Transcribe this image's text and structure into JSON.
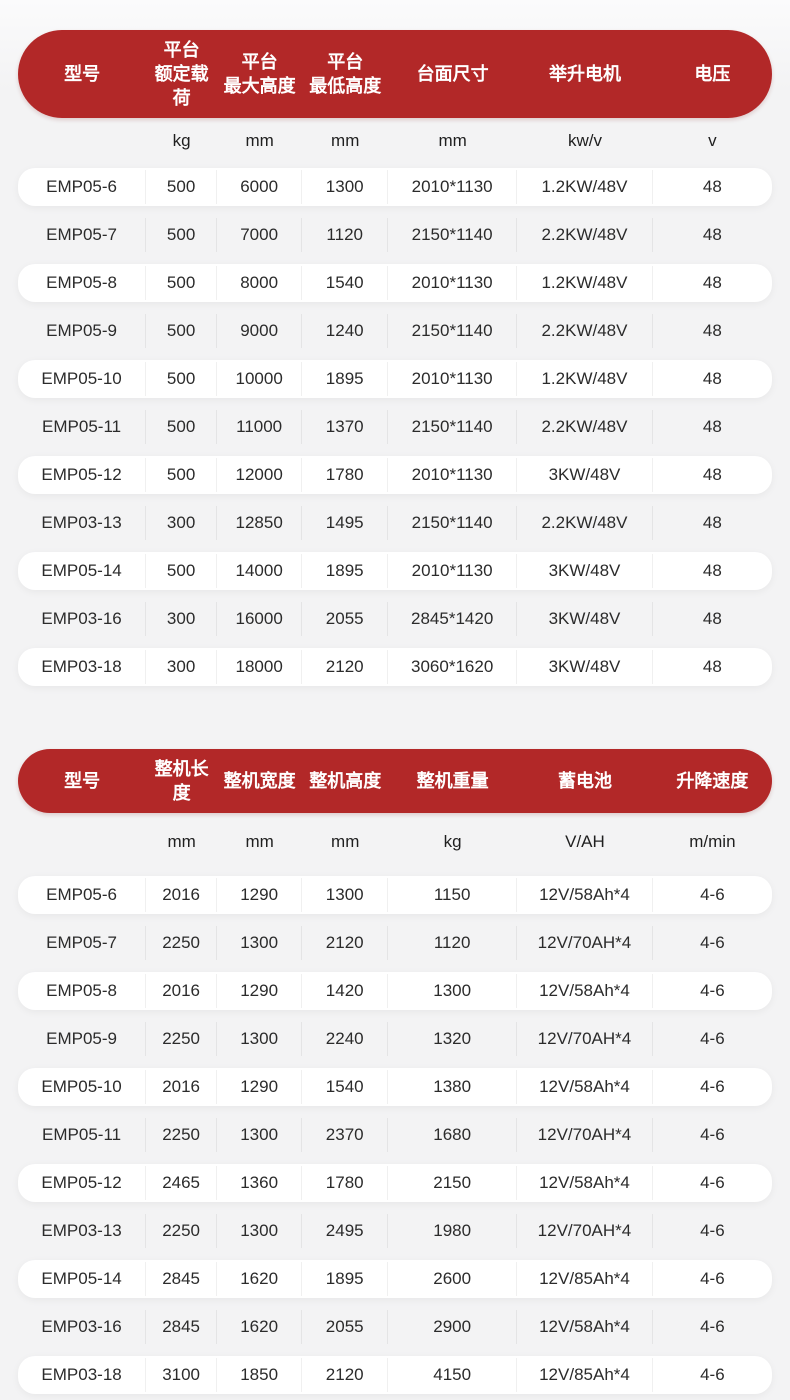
{
  "colors": {
    "header_bg": "#b22828",
    "header_text": "#ffffff",
    "row_highlight": "#ffffff",
    "page_bg": "#f3f3f4",
    "body_text": "#2b2b2b"
  },
  "table1": {
    "headers": [
      [
        "型号"
      ],
      [
        "平台",
        "额定载荷"
      ],
      [
        "平台",
        "最大高度"
      ],
      [
        "平台",
        "最低高度"
      ],
      [
        "台面尺寸"
      ],
      [
        "举升电机"
      ],
      [
        "电压"
      ]
    ],
    "units": [
      "",
      "kg",
      "mm",
      "mm",
      "mm",
      "kw/v",
      "v"
    ],
    "rows": [
      [
        "EMP05-6",
        "500",
        "6000",
        "1300",
        "2010*1130",
        "1.2KW/48V",
        "48"
      ],
      [
        "EMP05-7",
        "500",
        "7000",
        "1120",
        "2150*1140",
        "2.2KW/48V",
        "48"
      ],
      [
        "EMP05-8",
        "500",
        "8000",
        "1540",
        "2010*1130",
        "1.2KW/48V",
        "48"
      ],
      [
        "EMP05-9",
        "500",
        "9000",
        "1240",
        "2150*1140",
        "2.2KW/48V",
        "48"
      ],
      [
        "EMP05-10",
        "500",
        "10000",
        "1895",
        "2010*1130",
        "1.2KW/48V",
        "48"
      ],
      [
        "EMP05-11",
        "500",
        "11000",
        "1370",
        "2150*1140",
        "2.2KW/48V",
        "48"
      ],
      [
        "EMP05-12",
        "500",
        "12000",
        "1780",
        "2010*1130",
        "3KW/48V",
        "48"
      ],
      [
        "EMP03-13",
        "300",
        "12850",
        "1495",
        "2150*1140",
        "2.2KW/48V",
        "48"
      ],
      [
        "EMP05-14",
        "500",
        "14000",
        "1895",
        "2010*1130",
        "3KW/48V",
        "48"
      ],
      [
        "EMP03-16",
        "300",
        "16000",
        "2055",
        "2845*1420",
        "3KW/48V",
        "48"
      ],
      [
        "EMP03-18",
        "300",
        "18000",
        "2120",
        "3060*1620",
        "3KW/48V",
        "48"
      ]
    ]
  },
  "table2": {
    "headers": [
      [
        "型号"
      ],
      [
        "整机长度"
      ],
      [
        "整机宽度"
      ],
      [
        "整机高度"
      ],
      [
        "整机重量"
      ],
      [
        "蓄电池"
      ],
      [
        "升降速度"
      ]
    ],
    "units": [
      "",
      "mm",
      "mm",
      "mm",
      "kg",
      "V/AH",
      "m/min"
    ],
    "rows": [
      [
        "EMP05-6",
        "2016",
        "1290",
        "1300",
        "1150",
        "12V/58Ah*4",
        "4-6"
      ],
      [
        "EMP05-7",
        "2250",
        "1300",
        "2120",
        "1120",
        "12V/70AH*4",
        "4-6"
      ],
      [
        "EMP05-8",
        "2016",
        "1290",
        "1420",
        "1300",
        "12V/58Ah*4",
        "4-6"
      ],
      [
        "EMP05-9",
        "2250",
        "1300",
        "2240",
        "1320",
        "12V/70AH*4",
        "4-6"
      ],
      [
        "EMP05-10",
        "2016",
        "1290",
        "1540",
        "1380",
        "12V/58Ah*4",
        "4-6"
      ],
      [
        "EMP05-11",
        "2250",
        "1300",
        "2370",
        "1680",
        "12V/70AH*4",
        "4-6"
      ],
      [
        "EMP05-12",
        "2465",
        "1360",
        "1780",
        "2150",
        "12V/58Ah*4",
        "4-6"
      ],
      [
        "EMP03-13",
        "2250",
        "1300",
        "2495",
        "1980",
        "12V/70AH*4",
        "4-6"
      ],
      [
        "EMP05-14",
        "2845",
        "1620",
        "1895",
        "2600",
        "12V/85Ah*4",
        "4-6"
      ],
      [
        "EMP03-16",
        "2845",
        "1620",
        "2055",
        "2900",
        "12V/58Ah*4",
        "4-6"
      ],
      [
        "EMP03-18",
        "3100",
        "1850",
        "2120",
        "4150",
        "12V/85Ah*4",
        "4-6"
      ]
    ]
  }
}
